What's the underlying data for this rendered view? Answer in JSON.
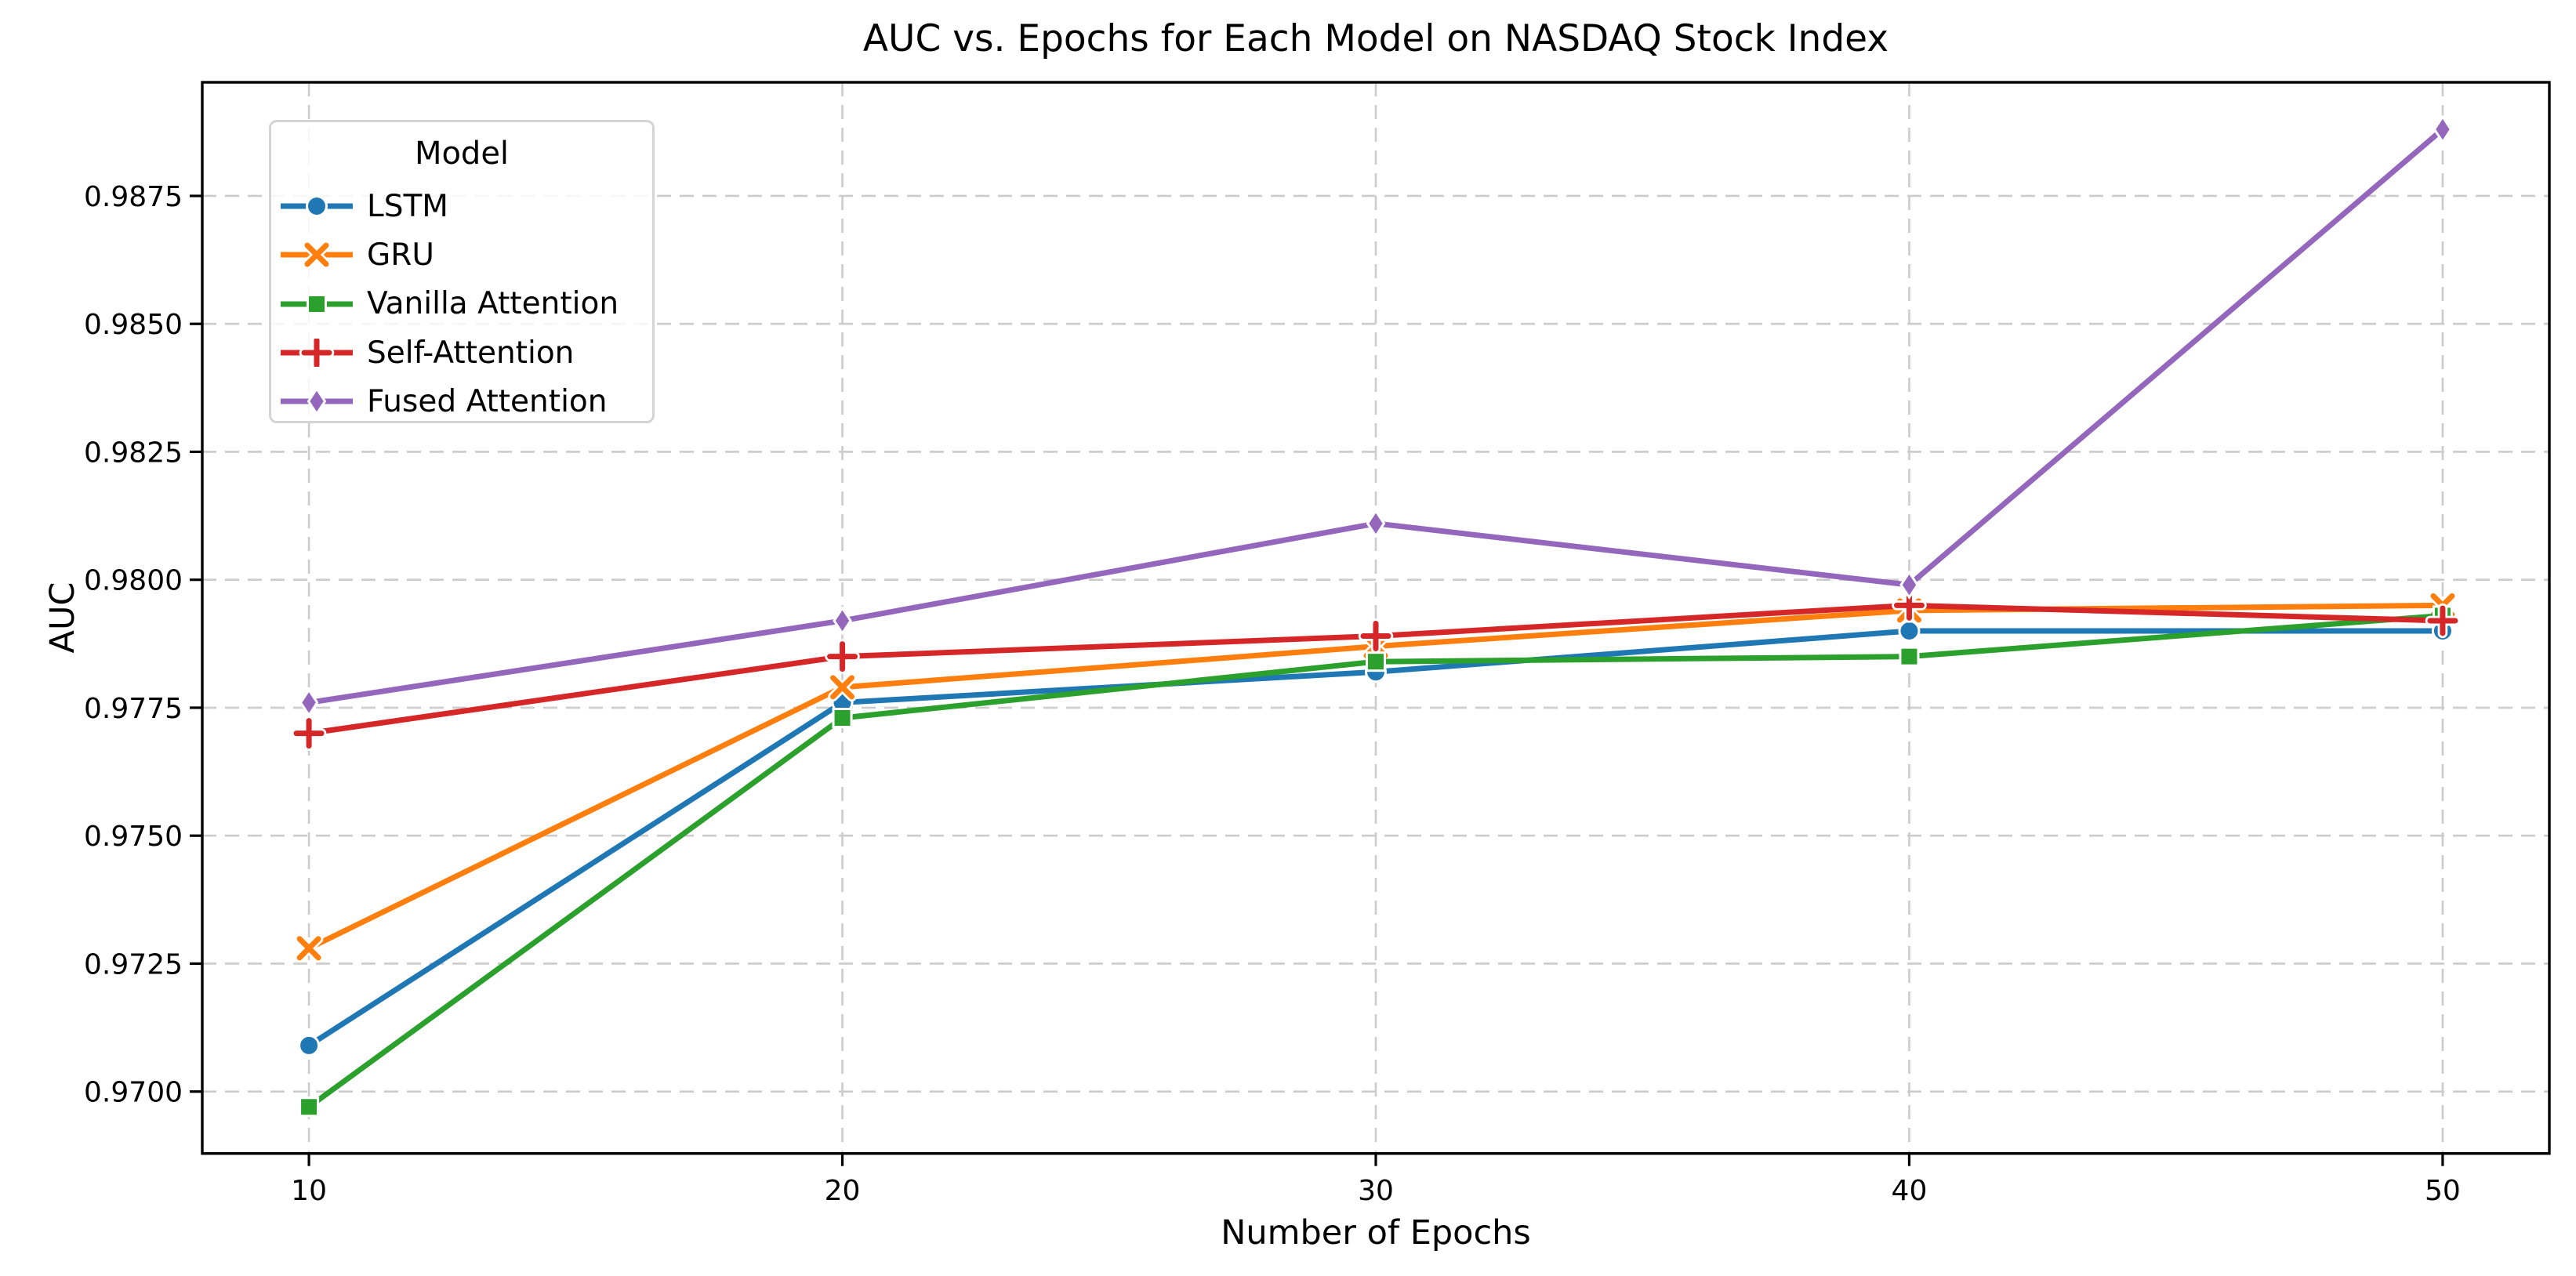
{
  "chart_data": {
    "type": "line",
    "title": "AUC vs. Epochs for Each Model on NASDAQ Stock Index",
    "xlabel": "Number of Epochs",
    "ylabel": "AUC",
    "x": [
      10,
      20,
      30,
      40,
      50
    ],
    "series": [
      {
        "name": "LSTM",
        "color": "#1f77b4",
        "marker": "circle",
        "values": [
          0.9709,
          0.9776,
          0.9782,
          0.979,
          0.979
        ]
      },
      {
        "name": "GRU",
        "color": "#ff7f0e",
        "marker": "x",
        "values": [
          0.9728,
          0.9779,
          0.9787,
          0.9794,
          0.9795
        ]
      },
      {
        "name": "Vanilla Attention",
        "color": "#2ca02c",
        "marker": "square",
        "values": [
          0.9697,
          0.9773,
          0.9784,
          0.9785,
          0.9793
        ]
      },
      {
        "name": "Self-Attention",
        "color": "#d62728",
        "marker": "plus",
        "values": [
          0.977,
          0.9785,
          0.9789,
          0.9795,
          0.9792
        ]
      },
      {
        "name": "Fused Attention",
        "color": "#9467bd",
        "marker": "diamond",
        "values": [
          0.9776,
          0.9792,
          0.9811,
          0.9799,
          0.9888
        ]
      }
    ],
    "legend": {
      "title": "Model",
      "position": "upper left"
    },
    "xlim": [
      8,
      52
    ],
    "ylim": [
      0.96879,
      0.98972
    ],
    "xticks": [
      10,
      20,
      30,
      40,
      50
    ],
    "xtick_labels": [
      "10",
      "20",
      "30",
      "40",
      "50"
    ],
    "yticks": [
      0.97,
      0.9725,
      0.975,
      0.9775,
      0.98,
      0.9825,
      0.985,
      0.9875
    ],
    "ytick_labels": [
      "0.9700",
      "0.9725",
      "0.9750",
      "0.9775",
      "0.9800",
      "0.9825",
      "0.9850",
      "0.9875"
    ],
    "grid": true,
    "grid_style": "dashed",
    "grid_color": "#cccccc",
    "spine_color": "#000000",
    "background": "#ffffff"
  }
}
